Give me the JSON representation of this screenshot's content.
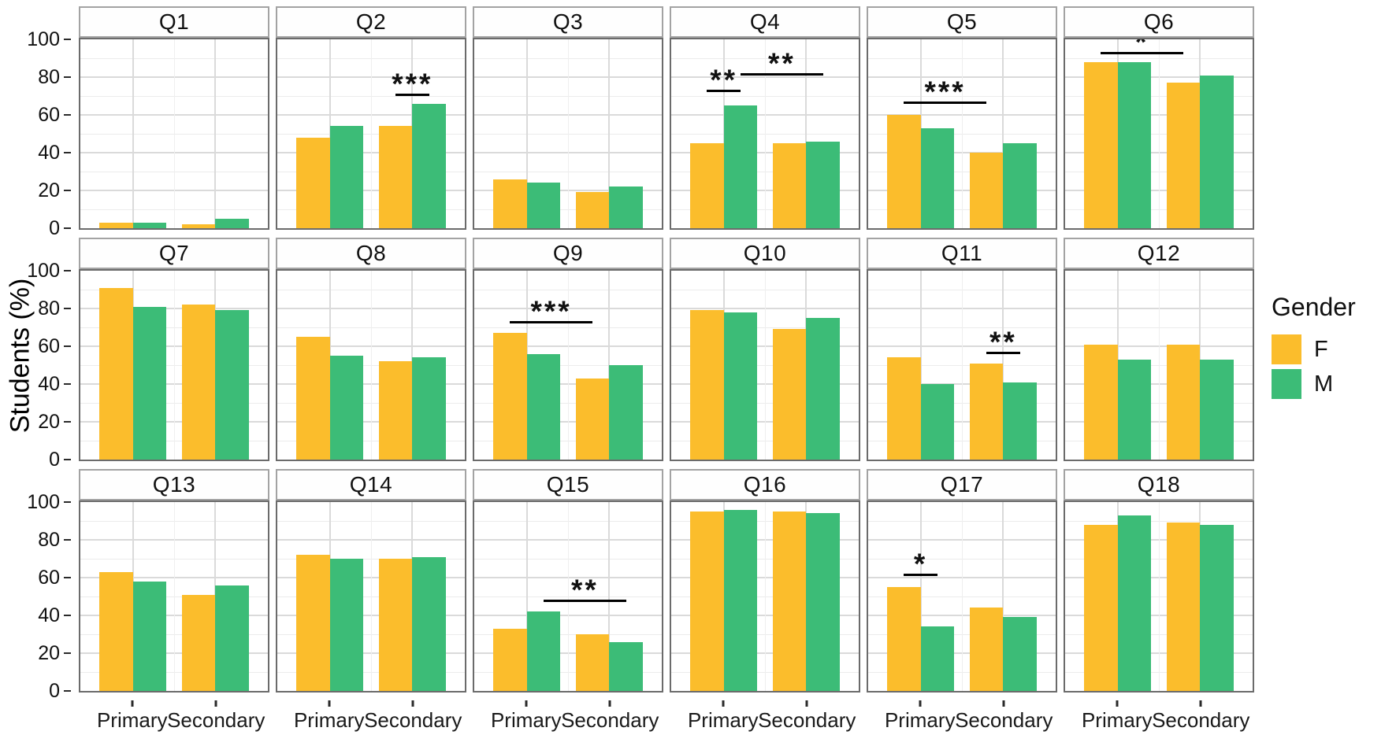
{
  "figure": {
    "y_axis_title": "Students (%)",
    "legend": {
      "title": "Gender",
      "items": [
        {
          "label": "F",
          "color": "#FBBD2C"
        },
        {
          "label": "M",
          "color": "#3CBC77"
        }
      ]
    }
  },
  "chart_data": {
    "type": "bar",
    "layout": "facet grid 3 rows x 6 columns, grouped dodged bars",
    "categories": [
      "Primary",
      "Secondary"
    ],
    "series_names": [
      "F",
      "M"
    ],
    "colors": {
      "F": "#FBBD2C",
      "M": "#3CBC77"
    },
    "ylabel": "Students (%)",
    "ylim": [
      0,
      100
    ],
    "y_ticks": [
      0,
      20,
      40,
      60,
      80,
      100
    ],
    "grid": "on",
    "legend_position": "right",
    "panels": [
      {
        "title": "Q1",
        "values": {
          "Primary": {
            "F": 3,
            "M": 3
          },
          "Secondary": {
            "F": 2,
            "M": 5
          }
        },
        "significance": []
      },
      {
        "title": "Q2",
        "values": {
          "Primary": {
            "F": 48,
            "M": 54
          },
          "Secondary": {
            "F": 54,
            "M": 66
          }
        },
        "significance": [
          {
            "stars": "***",
            "from": "Secondary-F",
            "to": "Secondary-M",
            "y": 70
          }
        ]
      },
      {
        "title": "Q3",
        "values": {
          "Primary": {
            "F": 26,
            "M": 24
          },
          "Secondary": {
            "F": 19,
            "M": 22
          }
        },
        "significance": []
      },
      {
        "title": "Q4",
        "values": {
          "Primary": {
            "F": 45,
            "M": 65
          },
          "Secondary": {
            "F": 45,
            "M": 46
          }
        },
        "significance": [
          {
            "stars": "**",
            "from": "Primary-F",
            "to": "Primary-M",
            "y": 72
          },
          {
            "stars": "**",
            "from": "Primary-M",
            "to": "Secondary-M",
            "y": 81
          }
        ]
      },
      {
        "title": "Q5",
        "values": {
          "Primary": {
            "F": 60,
            "M": 53
          },
          "Secondary": {
            "F": 40,
            "M": 45
          }
        },
        "significance": [
          {
            "stars": "***",
            "from": "Primary-F",
            "to": "Secondary-F",
            "y": 66
          }
        ]
      },
      {
        "title": "Q6",
        "values": {
          "Primary": {
            "F": 88,
            "M": 88
          },
          "Secondary": {
            "F": 77,
            "M": 81
          }
        },
        "significance": [
          {
            "stars": "*",
            "from": "Primary-F",
            "to": "Secondary-F",
            "y": 92
          }
        ]
      },
      {
        "title": "Q7",
        "values": {
          "Primary": {
            "F": 91,
            "M": 81
          },
          "Secondary": {
            "F": 82,
            "M": 79
          }
        },
        "significance": []
      },
      {
        "title": "Q8",
        "values": {
          "Primary": {
            "F": 65,
            "M": 55
          },
          "Secondary": {
            "F": 52,
            "M": 54
          }
        },
        "significance": []
      },
      {
        "title": "Q9",
        "values": {
          "Primary": {
            "F": 67,
            "M": 56
          },
          "Secondary": {
            "F": 43,
            "M": 50
          }
        },
        "significance": [
          {
            "stars": "***",
            "from": "Primary-F",
            "to": "Secondary-F",
            "y": 72
          }
        ]
      },
      {
        "title": "Q10",
        "values": {
          "Primary": {
            "F": 79,
            "M": 78
          },
          "Secondary": {
            "F": 69,
            "M": 75
          }
        },
        "significance": []
      },
      {
        "title": "Q11",
        "values": {
          "Primary": {
            "F": 54,
            "M": 40
          },
          "Secondary": {
            "F": 51,
            "M": 41
          }
        },
        "significance": [
          {
            "stars": "**",
            "from": "Secondary-F",
            "to": "Secondary-M",
            "y": 56
          }
        ]
      },
      {
        "title": "Q12",
        "values": {
          "Primary": {
            "F": 61,
            "M": 53
          },
          "Secondary": {
            "F": 61,
            "M": 53
          }
        },
        "significance": []
      },
      {
        "title": "Q13",
        "values": {
          "Primary": {
            "F": 63,
            "M": 58
          },
          "Secondary": {
            "F": 51,
            "M": 56
          }
        },
        "significance": []
      },
      {
        "title": "Q14",
        "values": {
          "Primary": {
            "F": 72,
            "M": 70
          },
          "Secondary": {
            "F": 70,
            "M": 71
          }
        },
        "significance": []
      },
      {
        "title": "Q15",
        "values": {
          "Primary": {
            "F": 33,
            "M": 42
          },
          "Secondary": {
            "F": 30,
            "M": 26
          }
        },
        "significance": [
          {
            "stars": "**",
            "from": "Primary-M",
            "to": "Secondary-M",
            "y": 47
          }
        ]
      },
      {
        "title": "Q16",
        "values": {
          "Primary": {
            "F": 95,
            "M": 96
          },
          "Secondary": {
            "F": 95,
            "M": 94
          }
        },
        "significance": []
      },
      {
        "title": "Q17",
        "values": {
          "Primary": {
            "F": 55,
            "M": 34
          },
          "Secondary": {
            "F": 44,
            "M": 39
          }
        },
        "significance": [
          {
            "stars": "*",
            "from": "Primary-F",
            "to": "Primary-M",
            "y": 61
          }
        ]
      },
      {
        "title": "Q18",
        "values": {
          "Primary": {
            "F": 88,
            "M": 93
          },
          "Secondary": {
            "F": 89,
            "M": 88
          }
        },
        "significance": []
      }
    ]
  }
}
